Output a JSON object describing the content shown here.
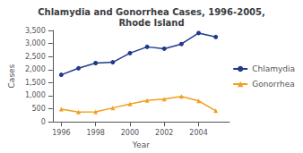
{
  "chart_data": {
    "type": "line",
    "title": "Chlamydia and Gonorrhea Cases, 1996-2005,\nRhode Island",
    "xlabel": "Year",
    "ylabel": "Cases",
    "x": [
      1996,
      1997,
      1998,
      1999,
      2000,
      2001,
      2002,
      2003,
      2004,
      2005
    ],
    "series": [
      {
        "name": "Chlamydia",
        "color": "#1f3a8a",
        "marker": "circle",
        "values": [
          1800,
          2050,
          2250,
          2280,
          2630,
          2870,
          2800,
          2980,
          3400,
          3250
        ]
      },
      {
        "name": "Gonorrhea",
        "color": "#f0a020",
        "marker": "triangle",
        "values": [
          480,
          370,
          380,
          530,
          680,
          820,
          870,
          970,
          800,
          420
        ]
      }
    ],
    "xlim": [
      1995.5,
      2005.8
    ],
    "xticks": [
      1996,
      1998,
      2000,
      2002,
      2004
    ],
    "ylim": [
      0,
      3500
    ],
    "yticks": [
      0,
      500,
      {
        "value": 1000,
        "label": "1,000"
      },
      {
        "value": 1500,
        "label": "1,500"
      },
      {
        "value": 2000,
        "label": "2,000"
      },
      {
        "value": 2500,
        "label": "2,500"
      },
      {
        "value": 3000,
        "label": "3,000"
      },
      {
        "value": 3500,
        "label": "3,500"
      }
    ],
    "grid": false,
    "legend": "center right"
  }
}
